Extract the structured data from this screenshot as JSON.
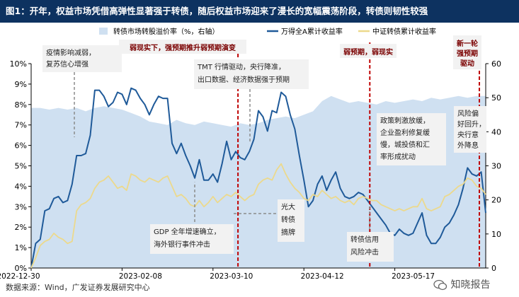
{
  "header": {
    "title": "图1：开年，权益市场凭借高弹性显著强于转债，随后权益市场迎来了漫长的宽幅震荡阶段，转债则韧性较强"
  },
  "footer": {
    "source": "数据来源：Wind，广发证券发展研究中心",
    "watermark": "知晓报告"
  },
  "colors": {
    "header_bg": "#0d3260",
    "series_area": "#cfe0f1",
    "series_wande": "#1f5a99",
    "series_csi": "#ecd98c",
    "phase_divider": "#c00000",
    "phase_label_bg": "#f2f2f2",
    "annotation_bg": "#f2f2f2",
    "leader": "#8c8c8c"
  },
  "chart_data": {
    "type": "line",
    "title": "开年，权益市场凭借高弹性显著强于转债，随后权益市场迎来了漫长的宽幅震荡阶段，转债则韧性较强",
    "x_ticks": [
      "2022-12-30",
      "2023-02-08",
      "2023-03-10",
      "2023-04-12",
      "2023-05-17"
    ],
    "x_range": [
      0,
      100
    ],
    "y_left": {
      "min": 0,
      "max": 10,
      "step": 1,
      "unit": "%",
      "tick_labels": [
        "0%",
        "1%",
        "2%",
        "3%",
        "4%",
        "5%",
        "6%",
        "7%",
        "8%",
        "9%",
        "10%"
      ]
    },
    "y_right": {
      "min": 0,
      "max": 60,
      "step": 10,
      "tick_labels": [
        "0",
        "10",
        "20",
        "30",
        "40",
        "50",
        "60"
      ]
    },
    "legend": [
      "转债市场转股溢价率（%，右轴）",
      "万得全A累计收益率",
      "中证转债累计收益率"
    ],
    "series": [
      {
        "name": "转债市场转股溢价率（%，右轴）",
        "type": "area",
        "axis": "right",
        "x": [
          0,
          2,
          4,
          6,
          8,
          10,
          12,
          14,
          16,
          18,
          20,
          22,
          24,
          26,
          28,
          30,
          32,
          34,
          36,
          38,
          40,
          42,
          44,
          46,
          48,
          50,
          52,
          54,
          56,
          58,
          60,
          62,
          64,
          66,
          68,
          70,
          72,
          74,
          76,
          78,
          80,
          82,
          84,
          86,
          88,
          90,
          92,
          94,
          96,
          98,
          100
        ],
        "values": [
          47,
          47,
          46.5,
          47,
          46.5,
          47,
          46,
          47,
          47.5,
          47,
          46.5,
          45.5,
          44.5,
          43,
          42.5,
          42,
          43.5,
          42.5,
          42,
          43,
          42.5,
          42,
          41.5,
          42.5,
          42,
          42.5,
          43.5,
          44,
          44.5,
          44,
          45,
          46,
          49,
          50.5,
          49.5,
          48.5,
          49,
          48.5,
          48,
          49,
          48.5,
          49,
          49.5,
          49,
          50,
          49.5,
          50,
          50.5,
          50,
          50.5,
          50.5
        ]
      },
      {
        "name": "万得全A累计收益率",
        "type": "line",
        "axis": "left",
        "x": [
          0,
          1,
          2,
          3,
          4,
          5,
          6,
          7,
          8,
          9,
          10,
          11,
          12,
          13,
          14,
          15,
          16,
          17,
          18,
          19,
          20,
          21,
          22,
          23,
          24,
          25,
          26,
          27,
          28,
          29,
          30,
          31,
          32,
          33,
          34,
          35,
          36,
          37,
          38,
          39,
          40,
          41,
          42,
          43,
          44,
          45,
          46,
          47,
          48,
          49,
          50,
          51,
          52,
          53,
          54,
          55,
          56,
          57,
          58,
          59,
          60,
          61,
          62,
          63,
          64,
          65,
          66,
          67,
          68,
          69,
          70,
          71,
          72,
          73,
          74,
          75,
          76,
          77,
          78,
          79,
          80,
          81,
          82,
          83,
          84,
          85,
          86,
          87,
          88,
          89,
          90,
          91,
          92,
          93,
          94,
          95,
          96,
          97,
          98,
          99,
          100
        ],
        "values": [
          0,
          1.2,
          1.4,
          2.8,
          2.9,
          3.4,
          3.5,
          3.2,
          3.3,
          4.1,
          5.5,
          5.5,
          5.6,
          6.5,
          8.7,
          8.7,
          8.4,
          7.9,
          8.1,
          8.6,
          8.5,
          8.0,
          8.8,
          8.7,
          8.3,
          8.0,
          7.5,
          8.0,
          8.4,
          8.3,
          8.3,
          6.1,
          5.6,
          6.1,
          5.5,
          5.0,
          4.4,
          5.3,
          4.3,
          4.3,
          4.6,
          4.2,
          5.1,
          6.2,
          5.3,
          5.7,
          5.4,
          5.3,
          5.7,
          6.3,
          7.7,
          7.4,
          6.7,
          7.7,
          7.6,
          8.6,
          8.4,
          7.5,
          6.8,
          5.5,
          4.3,
          3.0,
          3.3,
          4.1,
          4.5,
          3.8,
          4.3,
          4.7,
          3.9,
          3.5,
          3.4,
          3.5,
          3.7,
          3.6,
          3.3,
          3.0,
          2.7,
          2.4,
          2.1,
          1.7,
          1.6,
          1.9,
          1.7,
          1.6,
          1.7,
          2.2,
          2.7,
          1.6,
          1.2,
          1.2,
          1.5,
          2.0,
          2.2,
          2.6,
          3.1,
          3.9,
          4.9,
          4.6,
          4.5,
          4.7,
          2.7
        ]
      },
      {
        "name": "中证转债累计收益率",
        "type": "line",
        "axis": "left",
        "x": [
          0,
          1,
          2,
          3,
          4,
          5,
          6,
          7,
          8,
          9,
          10,
          11,
          12,
          13,
          14,
          15,
          16,
          17,
          18,
          19,
          20,
          21,
          22,
          23,
          24,
          25,
          26,
          27,
          28,
          29,
          30,
          31,
          32,
          33,
          34,
          35,
          36,
          37,
          38,
          39,
          40,
          41,
          42,
          43,
          44,
          45,
          46,
          47,
          48,
          49,
          50,
          51,
          52,
          53,
          54,
          55,
          56,
          57,
          58,
          59,
          60,
          61,
          62,
          63,
          64,
          65,
          66,
          67,
          68,
          69,
          70,
          71,
          72,
          73,
          74,
          75,
          76,
          77,
          78,
          79,
          80,
          81,
          82,
          83,
          84,
          85,
          86,
          87,
          88,
          89,
          90,
          91,
          92,
          93,
          94,
          95,
          96,
          97,
          98,
          99,
          100
        ],
        "values": [
          0,
          0.5,
          1.1,
          1.3,
          1.4,
          1.7,
          1.5,
          1.4,
          1.2,
          1.3,
          2.8,
          3.1,
          3.2,
          3.4,
          3.9,
          4.2,
          4.3,
          4.5,
          4.2,
          3.9,
          4.0,
          3.8,
          4.6,
          4.5,
          4.3,
          4.2,
          4.4,
          4.3,
          4.2,
          4.4,
          4.5,
          4.0,
          3.5,
          3.6,
          3.4,
          3.1,
          3.0,
          3.3,
          3.0,
          3.2,
          3.5,
          3.2,
          3.4,
          3.6,
          3.5,
          3.7,
          3.5,
          3.3,
          3.5,
          3.6,
          4.1,
          4.3,
          4.4,
          4.3,
          4.8,
          5.1,
          4.6,
          4.2,
          3.9,
          3.7,
          3.4,
          3.3,
          3.6,
          3.5,
          3.8,
          3.6,
          3.4,
          3.5,
          3.3,
          3.2,
          3.3,
          3.1,
          3.4,
          3.5,
          3.4,
          3.3,
          3.3,
          3.1,
          3.0,
          2.9,
          2.8,
          2.9,
          2.8,
          2.9,
          3.0,
          3.0,
          3.4,
          2.9,
          2.8,
          2.9,
          3.0,
          3.5,
          3.6,
          3.8,
          4.0,
          4.1,
          4.4,
          4.3,
          4.0,
          3.9,
          3.6
        ]
      }
    ],
    "phase_dividers": [
      {
        "x": 45.5,
        "label": "弱现实下，强预期推升弱预期演变"
      },
      {
        "x": 74.5,
        "label": "弱预期，弱现实"
      },
      {
        "x": 98.6,
        "label": "新一轮强预期驱动"
      }
    ],
    "annotations": [
      {
        "text": "疫情影响减弱，复苏信心增强",
        "lines": [
          "疫情影响减弱，",
          "复苏信心增强"
        ],
        "anchor_x": 11,
        "anchor_y": 6.4
      },
      {
        "text": "TMT行情驱动，央行降准、出口数据、经济数据强于预期",
        "lines": [
          "TMT 行情驱动，央行降准，",
          "出口数据、经济数据强于预期"
        ],
        "anchor_x": 38.5,
        "anchor_y": 6.1
      },
      {
        "text": "GDP全年增速确立，海外银行事件冲击",
        "lines": [
          "GDP 全年增速确立，",
          "海外银行事件冲击"
        ],
        "anchor_x": 28.5,
        "anchor_y": 4.2
      },
      {
        "text": "光大转债摘牌",
        "lines": [
          "光大",
          "转债",
          "摘牌"
        ],
        "anchor_x": 32.5,
        "anchor_y": 2.8
      },
      {
        "text": "政策刺激放缓，企业盈利修复缓慢，城投债和汇率形成扰动",
        "lines": [
          "政策刺激放缓，",
          "企业盈利修复缓",
          "慢，城投债和汇",
          "率形成扰动"
        ],
        "anchor_x": 84.0,
        "anchor_y": 3.5
      },
      {
        "text": "转债信用风险冲击",
        "lines": [
          "转债信用",
          "风险冲击"
        ],
        "anchor_x": 65.5,
        "anchor_y": 3.1
      },
      {
        "text": "风险偏好回升，央行意外降息",
        "lines": [
          "风险偏",
          "好回升，",
          "央行意",
          "外降息"
        ],
        "anchor_x": 98.0,
        "anchor_y": 4.6
      }
    ]
  }
}
